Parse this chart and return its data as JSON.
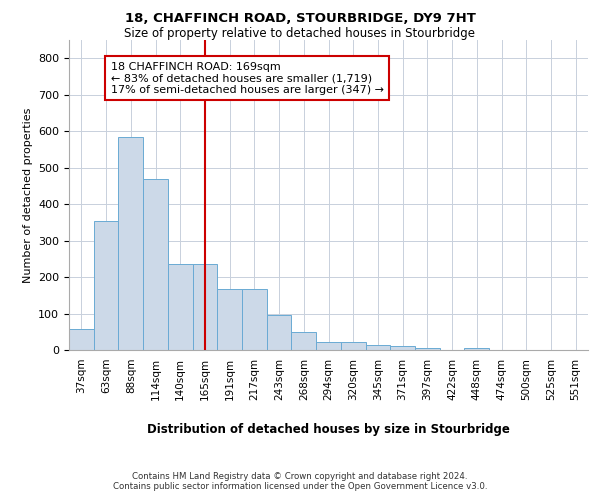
{
  "title1": "18, CHAFFINCH ROAD, STOURBRIDGE, DY9 7HT",
  "title2": "Size of property relative to detached houses in Stourbridge",
  "xlabel": "Distribution of detached houses by size in Stourbridge",
  "ylabel": "Number of detached properties",
  "categories": [
    "37sqm",
    "63sqm",
    "88sqm",
    "114sqm",
    "140sqm",
    "165sqm",
    "191sqm",
    "217sqm",
    "243sqm",
    "268sqm",
    "294sqm",
    "320sqm",
    "345sqm",
    "371sqm",
    "397sqm",
    "422sqm",
    "448sqm",
    "474sqm",
    "500sqm",
    "525sqm",
    "551sqm"
  ],
  "values": [
    57,
    355,
    585,
    468,
    235,
    235,
    168,
    168,
    95,
    48,
    22,
    22,
    15,
    10,
    5,
    0,
    5,
    0,
    0,
    0,
    0
  ],
  "bar_color": "#ccd9e8",
  "bar_edge_color": "#6aaad4",
  "ref_line_x": 5,
  "ref_line_color": "#cc0000",
  "annotation_line1": "18 CHAFFINCH ROAD: 169sqm",
  "annotation_line2": "← 83% of detached houses are smaller (1,719)",
  "annotation_line3": "17% of semi-detached houses are larger (347) →",
  "annotation_box_color": "#ffffff",
  "annotation_box_edge": "#cc0000",
  "ylim": [
    0,
    850
  ],
  "yticks": [
    0,
    100,
    200,
    300,
    400,
    500,
    600,
    700,
    800
  ],
  "footer1": "Contains HM Land Registry data © Crown copyright and database right 2024.",
  "footer2": "Contains public sector information licensed under the Open Government Licence v3.0.",
  "bg_color": "#ffffff",
  "grid_color": "#c8d0dc"
}
